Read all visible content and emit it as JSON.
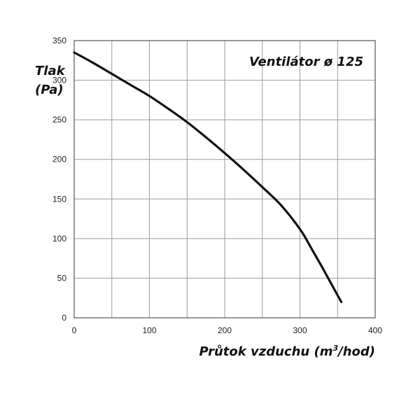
{
  "chart_data": {
    "type": "line",
    "title": "Ventilátor ø 125",
    "ylabel_line1": "Tlak",
    "ylabel_line2": "(Pa)",
    "xlabel_prefix": "Průtok vzduchu (m",
    "xlabel_sup": "3",
    "xlabel_suffix": "/hod)",
    "xlim": [
      0,
      400
    ],
    "ylim": [
      0,
      350
    ],
    "x_ticks": [
      0,
      100,
      200,
      300,
      400
    ],
    "y_ticks": [
      0,
      50,
      100,
      150,
      200,
      250,
      300,
      350
    ],
    "x_grid": [
      0,
      50,
      100,
      150,
      200,
      250,
      300,
      350,
      400
    ],
    "y_grid": [
      0,
      50,
      100,
      150,
      200,
      250,
      300,
      350
    ],
    "grid": true,
    "series": [
      {
        "x": [
          0,
          25,
          50,
          75,
          100,
          125,
          150,
          175,
          200,
          225,
          250,
          275,
          300,
          315,
          330,
          345,
          355
        ],
        "y": [
          335,
          322,
          308,
          294,
          280,
          264,
          247,
          228,
          208,
          187,
          165,
          142,
          112,
          88,
          63,
          37,
          20
        ]
      }
    ]
  }
}
